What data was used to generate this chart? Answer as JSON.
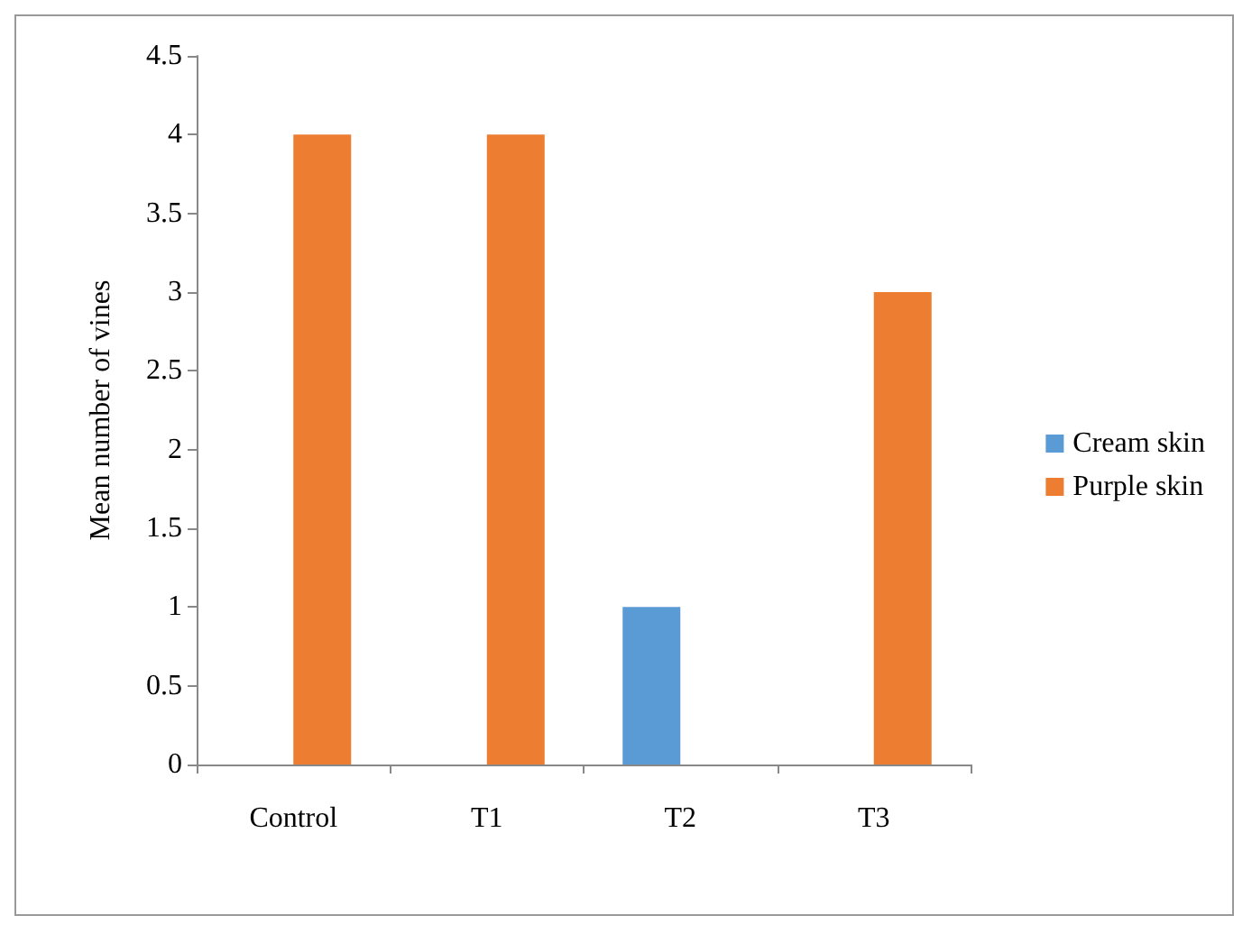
{
  "chart_data": {
    "type": "bar",
    "ylabel": "Mean number of vines",
    "categories": [
      "Control",
      "T1",
      "T2",
      "T3"
    ],
    "series": [
      {
        "name": "Cream skin",
        "color": "#5b9bd5",
        "values": [
          0,
          0,
          1,
          0
        ]
      },
      {
        "name": "Purple skin",
        "color": "#ed7d31",
        "values": [
          4,
          4,
          0,
          3
        ]
      }
    ],
    "ylim": [
      0,
      4.5
    ],
    "yticks": [
      0,
      0.5,
      1,
      1.5,
      2,
      2.5,
      3,
      3.5,
      4,
      4.5
    ],
    "grid": false,
    "legend": "right"
  }
}
